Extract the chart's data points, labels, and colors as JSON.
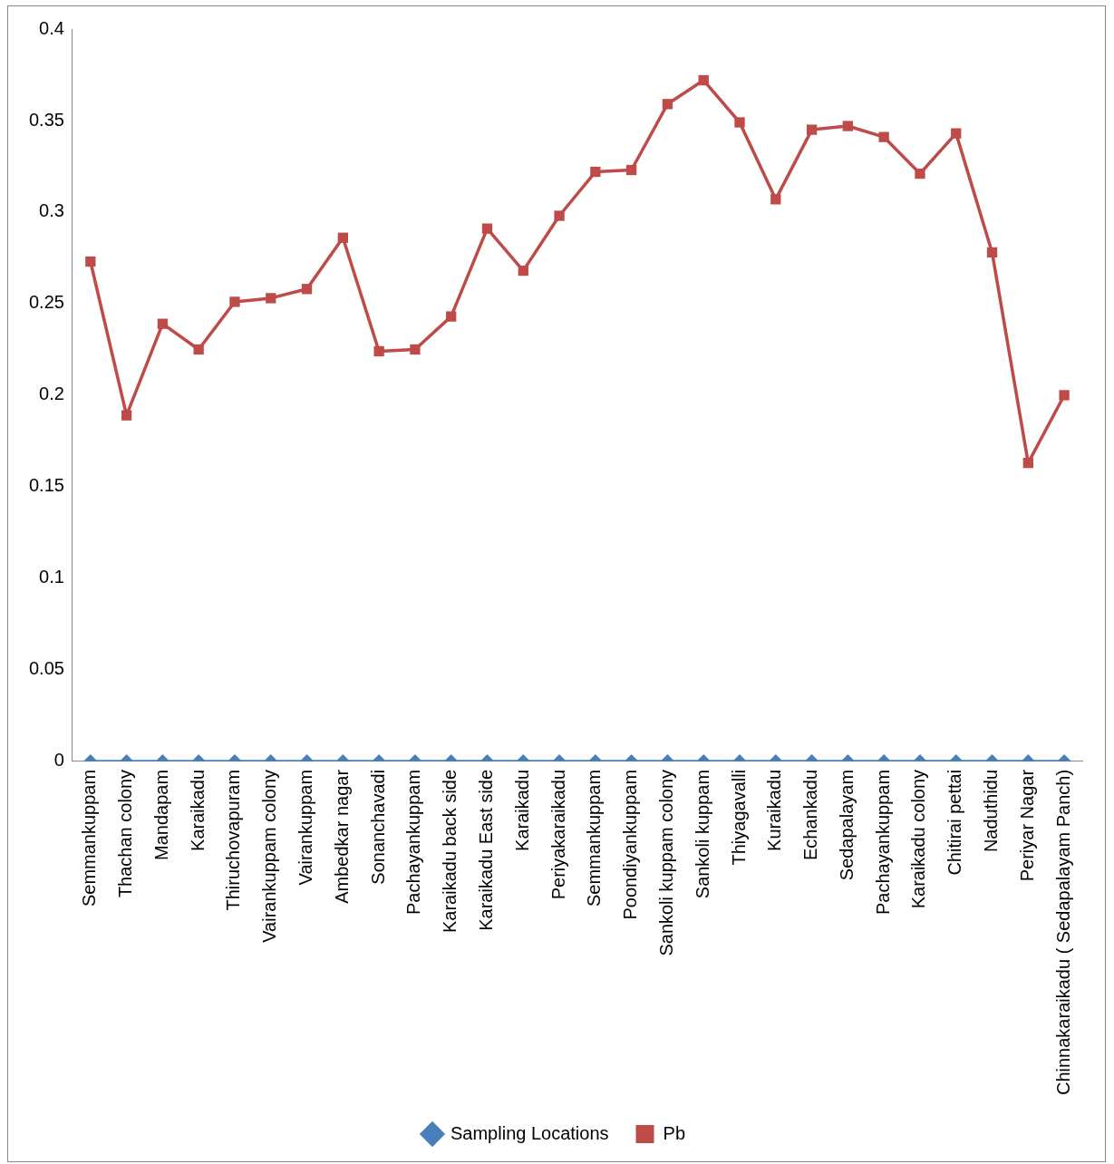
{
  "chart_data": {
    "type": "line",
    "categories": [
      "Semmankuppam",
      "Thachan colony",
      "Mandapam",
      "Karaikadu",
      "Thiruchovapuram",
      "Vairankuppam colony",
      "Vairankuppam",
      "Ambedkar nagar",
      "Sonanchavadi",
      "Pachayankuppam",
      "Karaikadu back side",
      "Karaikadu East side",
      "Karaikadu",
      "Periyakaraikadu",
      "Semmankuppam",
      "Poondiyankuppam",
      "Sankoli kuppam colony",
      "Sankoli kuppam",
      "Thiyagavalli",
      "Kuraikadu",
      "Echankadu",
      "Sedapalayam",
      "Pachayankuppam",
      "Karaikadu colony",
      "Chitirai pettai",
      "Naduthidu",
      "Periyar Nagar",
      "Chinnakaraikadu ( Sedapalayam Panch)"
    ],
    "series": [
      {
        "name": "Sampling Locations",
        "color": "#4a7ebb",
        "marker": "diamond",
        "values": [
          0,
          0,
          0,
          0,
          0,
          0,
          0,
          0,
          0,
          0,
          0,
          0,
          0,
          0,
          0,
          0,
          0,
          0,
          0,
          0,
          0,
          0,
          0,
          0,
          0,
          0,
          0,
          0
        ]
      },
      {
        "name": "Pb",
        "color": "#be4b48",
        "marker": "square",
        "values": [
          0.273,
          0.189,
          0.239,
          0.225,
          0.251,
          0.253,
          0.258,
          0.286,
          0.224,
          0.225,
          0.243,
          0.291,
          0.268,
          0.298,
          0.322,
          0.323,
          0.359,
          0.372,
          0.349,
          0.307,
          0.345,
          0.347,
          0.341,
          0.321,
          0.343,
          0.278,
          0.163,
          0.2
        ]
      }
    ],
    "ylim": [
      0,
      0.4
    ],
    "yticks": [
      0,
      0.05,
      0.1,
      0.15,
      0.2,
      0.25,
      0.3,
      0.35,
      0.4
    ],
    "grid": false,
    "legend": "bottom",
    "line_style": "solid"
  }
}
